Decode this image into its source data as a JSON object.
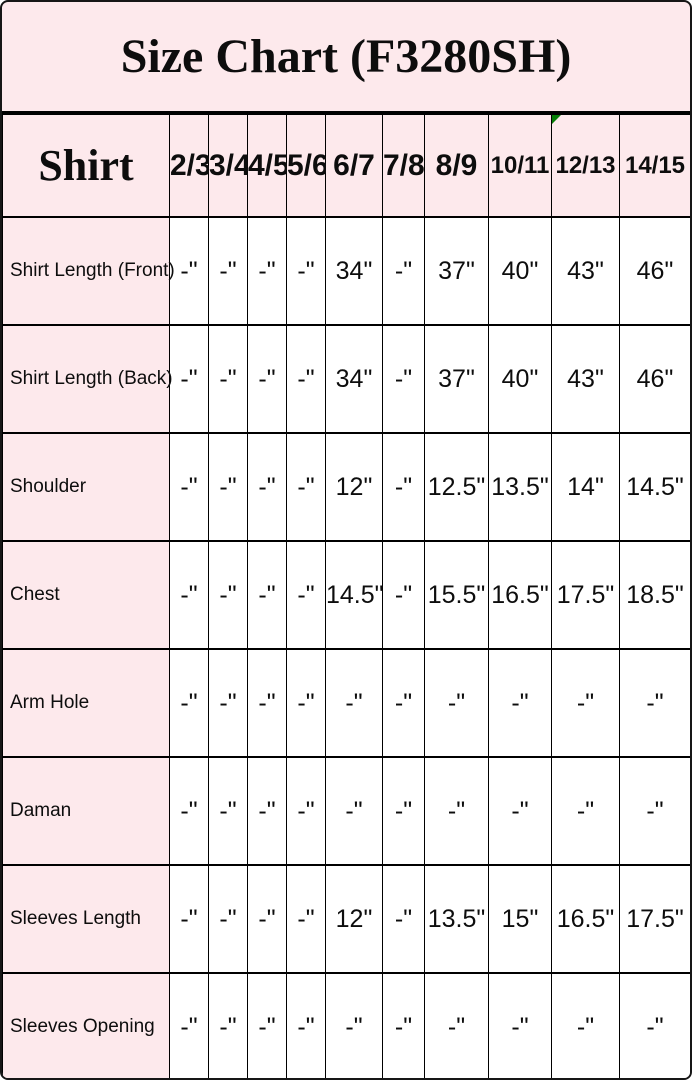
{
  "title": "Size Chart (F3280SH)",
  "colors": {
    "background_pink": "#fde9ec",
    "cell_white": "#ffffff",
    "border_black": "#000000",
    "flag_green": "#067d06"
  },
  "icons": {
    "flag_triangle": "green-corner-flag"
  },
  "chart_data": {
    "type": "table",
    "title": "Size Chart (F3280SH)",
    "corner_label": "Shirt",
    "columns": [
      "2/3",
      "3/4",
      "4/5",
      "5/6",
      "6/7",
      "7/8",
      "8/9",
      "10/11",
      "12/13",
      "14/15"
    ],
    "flagged_column": "12/13",
    "rows": [
      {
        "label": "Shirt Length (Front)",
        "values": [
          "-\"",
          "-\"",
          "-\"",
          "-\"",
          "34\"",
          "-\"",
          "37\"",
          "40\"",
          "43\"",
          "46\""
        ]
      },
      {
        "label": "Shirt Length (Back)",
        "values": [
          "-\"",
          "-\"",
          "-\"",
          "-\"",
          "34\"",
          "-\"",
          "37\"",
          "40\"",
          "43\"",
          "46\""
        ]
      },
      {
        "label": "Shoulder",
        "values": [
          "-\"",
          "-\"",
          "-\"",
          "-\"",
          "12\"",
          "-\"",
          "12.5\"",
          "13.5\"",
          "14\"",
          "14.5\""
        ]
      },
      {
        "label": "Chest",
        "values": [
          "-\"",
          "-\"",
          "-\"",
          "-\"",
          "14.5\"",
          "-\"",
          "15.5\"",
          "16.5\"",
          "17.5\"",
          "18.5\""
        ]
      },
      {
        "label": "Arm Hole",
        "values": [
          "-\"",
          "-\"",
          "-\"",
          "-\"",
          "-\"",
          "-\"",
          "-\"",
          "-\"",
          "-\"",
          "-\""
        ]
      },
      {
        "label": "Daman",
        "values": [
          "-\"",
          "-\"",
          "-\"",
          "-\"",
          "-\"",
          "-\"",
          "-\"",
          "-\"",
          "-\"",
          "-\""
        ]
      },
      {
        "label": "Sleeves Length",
        "values": [
          "-\"",
          "-\"",
          "-\"",
          "-\"",
          "12\"",
          "-\"",
          "13.5\"",
          "15\"",
          "16.5\"",
          "17.5\""
        ]
      },
      {
        "label": "Sleeves Opening",
        "values": [
          "-\"",
          "-\"",
          "-\"",
          "-\"",
          "-\"",
          "-\"",
          "-\"",
          "-\"",
          "-\"",
          "-\""
        ]
      }
    ]
  }
}
